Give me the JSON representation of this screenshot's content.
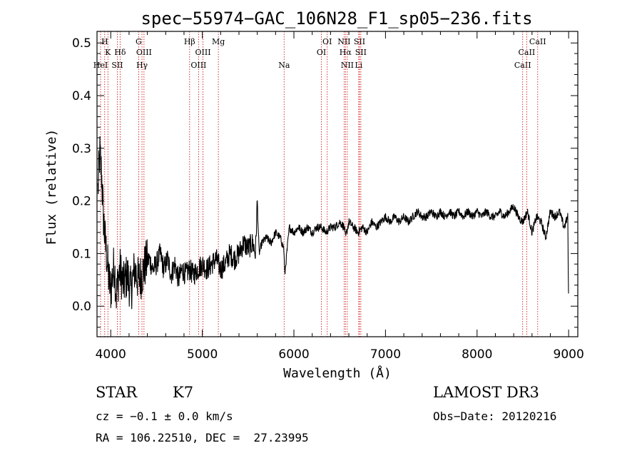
{
  "chart_data": {
    "type": "line",
    "title": "spec−55974−GAC_106N28_F1_sp05−236.fits",
    "xlabel": "Wavelength (Å)",
    "ylabel": "Flux (relative)",
    "xlim": [
      3850,
      9100
    ],
    "ylim": [
      -0.058,
      0.522
    ],
    "x_ticks": [
      4000,
      5000,
      6000,
      7000,
      8000,
      9000
    ],
    "x_tick_labels": [
      "4000",
      "5000",
      "6000",
      "7000",
      "8000",
      "9000"
    ],
    "y_ticks": [
      0.0,
      0.1,
      0.2,
      0.3,
      0.4,
      0.5
    ],
    "y_tick_labels": [
      "0.0",
      "0.1",
      "0.2",
      "0.3",
      "0.4",
      "0.5"
    ],
    "series": [
      {
        "name": "flux",
        "x": [
          3860,
          3880,
          3900,
          3920,
          3940,
          3960,
          3980,
          4000,
          4020,
          4040,
          4060,
          4080,
          4100,
          4140,
          4180,
          4220,
          4260,
          4300,
          4340,
          4380,
          4420,
          4460,
          4500,
          4540,
          4580,
          4620,
          4660,
          4700,
          4740,
          4780,
          4820,
          4860,
          4900,
          4950,
          5000,
          5050,
          5100,
          5150,
          5200,
          5250,
          5300,
          5350,
          5400,
          5450,
          5500,
          5550,
          5580,
          5600,
          5620,
          5650,
          5700,
          5750,
          5800,
          5850,
          5890,
          5900,
          5950,
          6000,
          6050,
          6100,
          6150,
          6200,
          6250,
          6300,
          6350,
          6400,
          6450,
          6500,
          6550,
          6563,
          6600,
          6650,
          6700,
          6750,
          6800,
          6850,
          6900,
          6950,
          7000,
          7050,
          7100,
          7150,
          7200,
          7250,
          7300,
          7350,
          7400,
          7450,
          7500,
          7550,
          7600,
          7650,
          7700,
          7750,
          7800,
          7850,
          7900,
          7950,
          8000,
          8050,
          8100,
          8150,
          8200,
          8250,
          8300,
          8350,
          8400,
          8450,
          8500,
          8550,
          8600,
          8650,
          8700,
          8750,
          8800,
          8850,
          8900,
          8950,
          8990,
          9000
        ],
        "values": [
          0.22,
          0.29,
          0.25,
          0.17,
          0.12,
          0.09,
          0.05,
          0.03,
          0.06,
          0.08,
          0.02,
          0.05,
          0.07,
          0.04,
          0.06,
          0.03,
          0.07,
          0.05,
          0.06,
          0.08,
          0.09,
          0.07,
          0.08,
          0.1,
          0.07,
          0.09,
          0.06,
          0.08,
          0.05,
          0.07,
          0.06,
          0.07,
          0.06,
          0.07,
          0.08,
          0.07,
          0.08,
          0.09,
          0.07,
          0.08,
          0.1,
          0.09,
          0.1,
          0.12,
          0.11,
          0.12,
          0.1,
          0.2,
          0.1,
          0.12,
          0.13,
          0.12,
          0.14,
          0.13,
          0.11,
          0.06,
          0.15,
          0.14,
          0.15,
          0.14,
          0.15,
          0.14,
          0.15,
          0.15,
          0.14,
          0.15,
          0.15,
          0.16,
          0.15,
          0.13,
          0.16,
          0.15,
          0.14,
          0.15,
          0.14,
          0.16,
          0.15,
          0.16,
          0.17,
          0.16,
          0.17,
          0.16,
          0.17,
          0.16,
          0.17,
          0.18,
          0.17,
          0.17,
          0.18,
          0.17,
          0.18,
          0.17,
          0.18,
          0.17,
          0.18,
          0.17,
          0.18,
          0.17,
          0.18,
          0.17,
          0.18,
          0.17,
          0.17,
          0.18,
          0.17,
          0.18,
          0.19,
          0.17,
          0.16,
          0.18,
          0.14,
          0.17,
          0.16,
          0.13,
          0.18,
          0.17,
          0.18,
          0.15,
          0.17,
          0.0
        ]
      }
    ],
    "line_markers": [
      {
        "label": "H",
        "wavelength": 3934,
        "row": 0
      },
      {
        "label": "K",
        "wavelength": 3969,
        "row": 1
      },
      {
        "label": "HeI",
        "wavelength": 3889,
        "row": 2
      },
      {
        "label": "SII",
        "wavelength": 4072,
        "row": 2
      },
      {
        "label": "Hδ",
        "wavelength": 4102,
        "row": 1
      },
      {
        "label": "G",
        "wavelength": 4305,
        "row": 0
      },
      {
        "label": "OIII",
        "wavelength": 4363,
        "row": 1
      },
      {
        "label": "Hγ",
        "wavelength": 4341,
        "row": 2
      },
      {
        "label": "Hβ",
        "wavelength": 4861,
        "row": 0
      },
      {
        "label": "OIII",
        "wavelength": 4959,
        "row": 2
      },
      {
        "label": "OIII",
        "wavelength": 5007,
        "row": 1
      },
      {
        "label": "Mg",
        "wavelength": 5175,
        "row": 0
      },
      {
        "label": "Na",
        "wavelength": 5893,
        "row": 2
      },
      {
        "label": "OI",
        "wavelength": 6300,
        "row": 1
      },
      {
        "label": "OI",
        "wavelength": 6364,
        "row": 0
      },
      {
        "label": "NII",
        "wavelength": 6548,
        "row": 0
      },
      {
        "label": "Hα",
        "wavelength": 6563,
        "row": 1
      },
      {
        "label": "NII",
        "wavelength": 6583,
        "row": 2
      },
      {
        "label": "Li",
        "wavelength": 6708,
        "row": 2
      },
      {
        "label": "SII",
        "wavelength": 6716,
        "row": 0
      },
      {
        "label": "SII",
        "wavelength": 6731,
        "row": 1
      },
      {
        "label": "CaII",
        "wavelength": 8498,
        "row": 2
      },
      {
        "label": "CaII",
        "wavelength": 8542,
        "row": 1
      },
      {
        "label": "CaII",
        "wavelength": 8662,
        "row": 0
      }
    ],
    "colors": {
      "curve": "#000000",
      "marker_line": "#cc0000",
      "axes": "#000000"
    }
  },
  "info": {
    "class_label": "STAR",
    "subclass": "K7",
    "survey": "LAMOST DR3",
    "cz": "cz = −0.1 ± 0.0 km/s",
    "obs_date": "Obs−Date: 20120216",
    "coords": "RA = 106.22510, DEC =  27.23995"
  }
}
